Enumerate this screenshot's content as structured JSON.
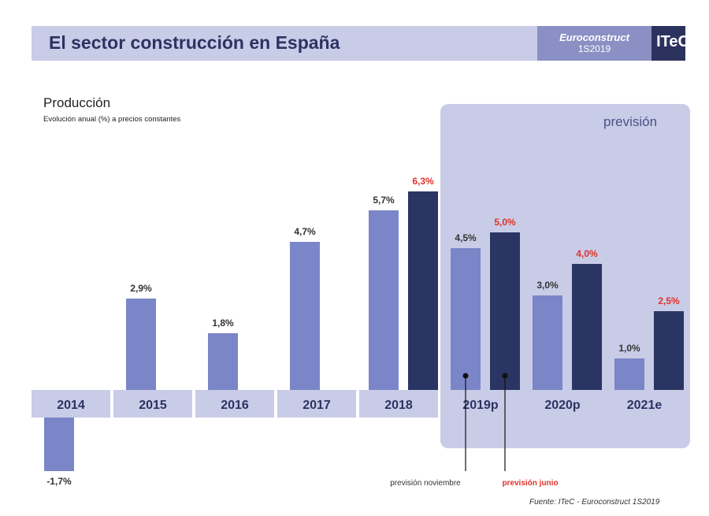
{
  "header": {
    "title": "El sector construcción en España",
    "brand_line1": "Euroconstruct",
    "brand_line2": "1S2019",
    "logo": "ITeC"
  },
  "chart_data": {
    "type": "bar",
    "title": "Producción",
    "subtitle": "Evolución anual (%) a precios constantes",
    "categories": [
      "2014",
      "2015",
      "2016",
      "2017",
      "2018",
      "2019p",
      "2020p",
      "2021e"
    ],
    "series": [
      {
        "name": "previsión noviembre",
        "values": [
          -1.7,
          2.9,
          1.8,
          4.7,
          5.7,
          4.5,
          3.0,
          1.0
        ],
        "labels": [
          "-1,7%",
          "2,9%",
          "1,8%",
          "4,7%",
          "5,7%",
          "4,5%",
          "3,0%",
          "1,0%"
        ],
        "color": "#7b86c8"
      },
      {
        "name": "previsión junio",
        "values": [
          null,
          null,
          null,
          null,
          6.3,
          5.0,
          4.0,
          2.5
        ],
        "labels": [
          "",
          "",
          "",
          "",
          "6,3%",
          "5,0%",
          "4,0%",
          "2,5%"
        ],
        "color": "#2b3563",
        "label_color": "#e0312a"
      }
    ],
    "forecast_region_label": "previsión",
    "forecast_categories": [
      "2019p",
      "2020p",
      "2021e"
    ],
    "source": "Fuente: ITeC - Euroconstruct 1S2019",
    "grid": false
  }
}
